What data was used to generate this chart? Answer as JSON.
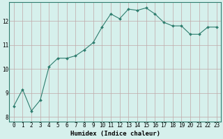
{
  "x": [
    0,
    1,
    2,
    3,
    4,
    5,
    6,
    7,
    8,
    9,
    10,
    11,
    12,
    13,
    14,
    15,
    16,
    17,
    18,
    19,
    20,
    21,
    22,
    23
  ],
  "y": [
    8.45,
    9.15,
    8.25,
    8.7,
    10.1,
    10.45,
    10.45,
    10.55,
    10.8,
    11.1,
    11.75,
    12.3,
    12.1,
    12.5,
    12.45,
    12.55,
    12.3,
    11.95,
    11.8,
    11.8,
    11.45,
    11.45,
    11.75,
    11.75
  ],
  "line_color": "#2e7d6e",
  "marker": "D",
  "marker_size": 2.0,
  "bg_color": "#d6f0ec",
  "grid_color": "#c0a8a8",
  "xlabel": "Humidex (Indice chaleur)",
  "ylabel": "",
  "ylim": [
    7.8,
    12.8
  ],
  "xlim": [
    -0.5,
    23.5
  ],
  "yticks": [
    8,
    9,
    10,
    11,
    12
  ],
  "xticks": [
    0,
    1,
    2,
    3,
    4,
    5,
    6,
    7,
    8,
    9,
    10,
    11,
    12,
    13,
    14,
    15,
    16,
    17,
    18,
    19,
    20,
    21,
    22,
    23
  ],
  "xlabel_fontsize": 6.5,
  "tick_fontsize": 5.5,
  "line_width": 0.8,
  "spine_color": "#2e7d6e"
}
